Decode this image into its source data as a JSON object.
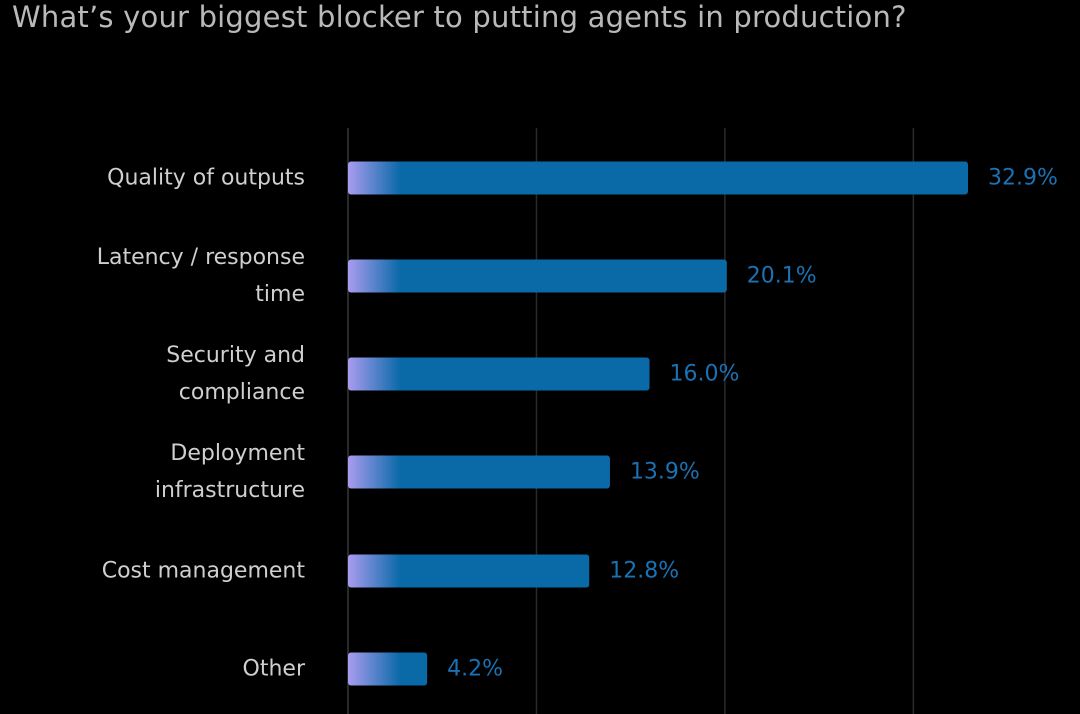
{
  "chart_data": {
    "type": "bar",
    "orientation": "horizontal",
    "title": "What’s your biggest blocker to putting agents in production?",
    "categories": [
      [
        "Quality of outputs"
      ],
      [
        "Latency / response",
        "time"
      ],
      [
        "Security and",
        "compliance"
      ],
      [
        "Deployment",
        "infrastructure"
      ],
      [
        "Cost management"
      ],
      [
        "Other"
      ]
    ],
    "values": [
      32.9,
      20.1,
      16.0,
      13.9,
      12.8,
      4.2
    ],
    "value_labels": [
      "32.9%",
      "20.1%",
      "16.0%",
      "13.9%",
      "12.8%",
      "4.2%"
    ],
    "unit": "%",
    "xlabel": "",
    "ylabel": "",
    "xlim": [
      0,
      40
    ],
    "gridlines": [
      0,
      10,
      20,
      30
    ],
    "grid": true,
    "legend": "none",
    "colors": {
      "bar": "#0a6aa8",
      "bar_start": "#a99cf0",
      "value_label": "#1a72b4",
      "category_label": "#cfcfcf",
      "grid": "#2a2a2a",
      "title": "#b9b9b9",
      "background": "#000000"
    }
  }
}
